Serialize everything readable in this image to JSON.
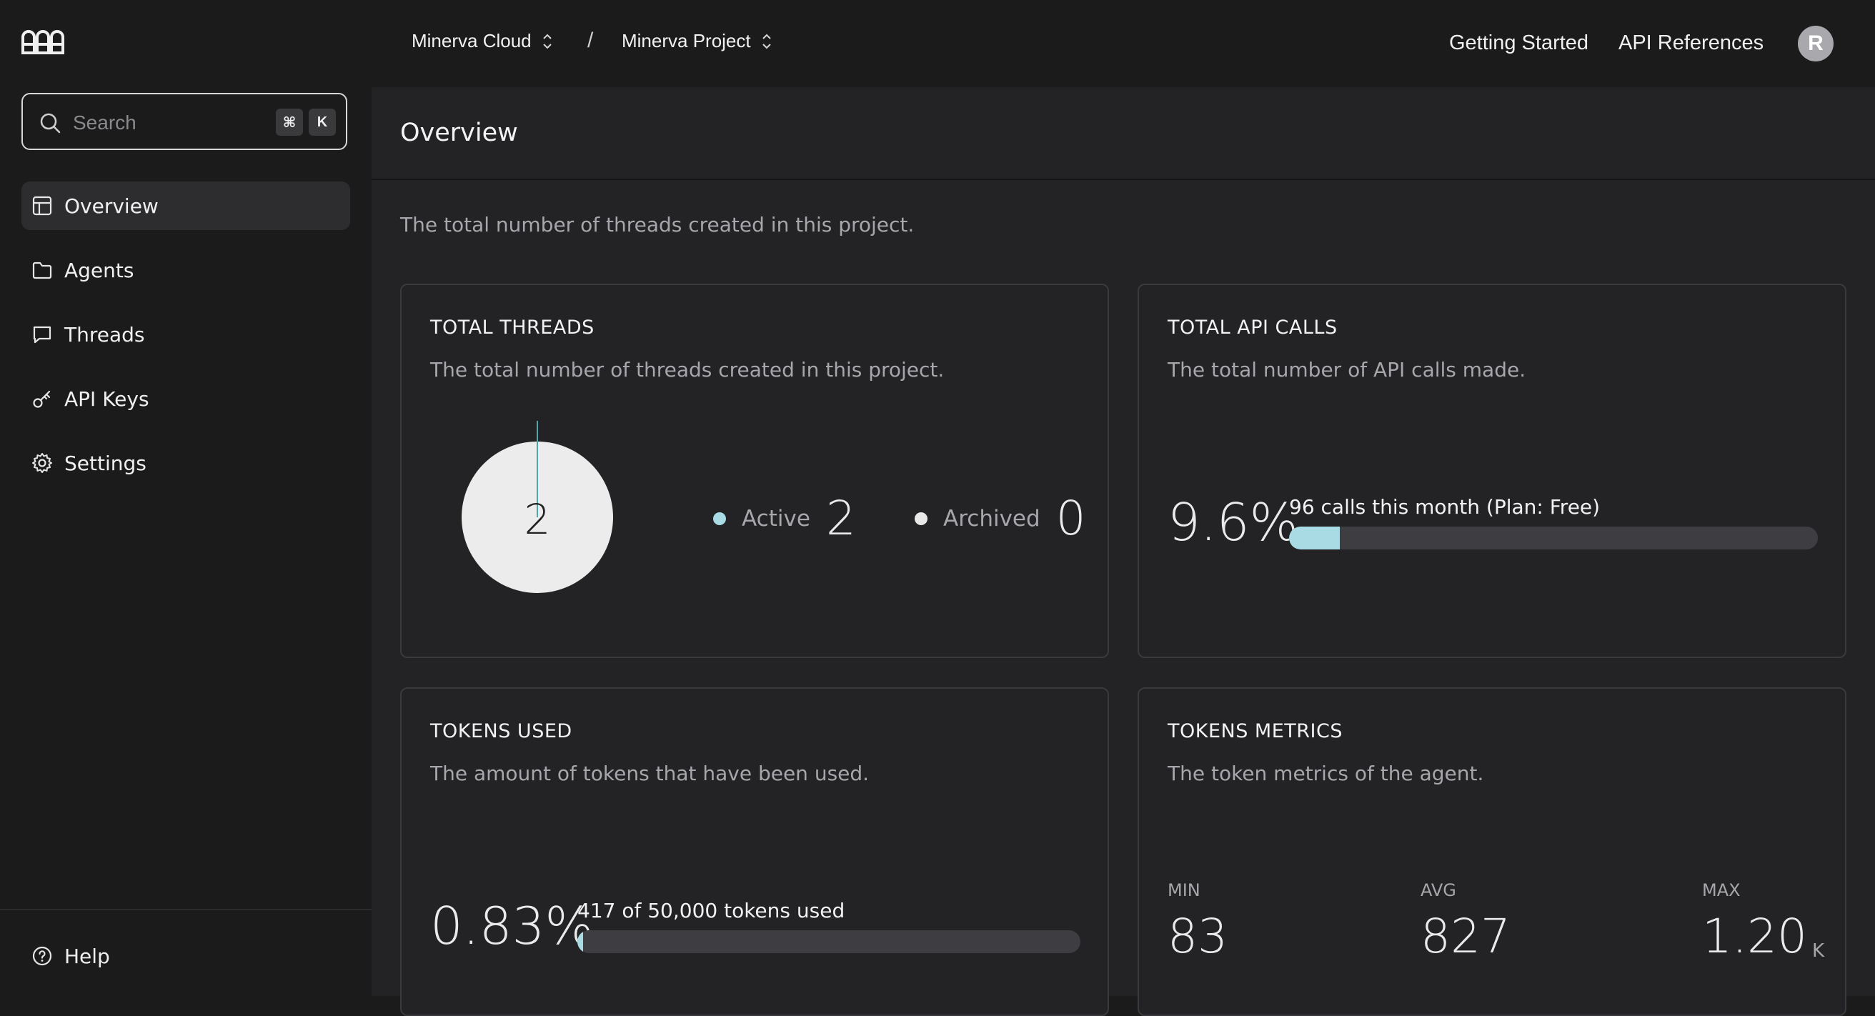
{
  "header": {
    "org": "Minerva Cloud",
    "separator": "/",
    "project": "Minerva Project",
    "links": [
      "Getting Started",
      "API References"
    ],
    "avatar_initial": "R"
  },
  "sidebar": {
    "search": {
      "placeholder": "Search",
      "shortcut": [
        "⌘",
        "K"
      ]
    },
    "items": [
      {
        "label": "Overview",
        "icon": "layout-icon",
        "active": true
      },
      {
        "label": "Agents",
        "icon": "folder-icon",
        "active": false
      },
      {
        "label": "Threads",
        "icon": "message-icon",
        "active": false
      },
      {
        "label": "API Keys",
        "icon": "key-icon",
        "active": false
      },
      {
        "label": "Settings",
        "icon": "gear-icon",
        "active": false
      }
    ],
    "help": {
      "label": "Help",
      "icon": "help-circle-icon"
    }
  },
  "main": {
    "title": "Overview",
    "description": "The total number of threads created in this project.",
    "cards": {
      "threads": {
        "title": "TOTAL THREADS",
        "description": "The total number of threads created in this project.",
        "pie_center": "2",
        "legend": [
          {
            "name": "Active",
            "value": "2",
            "color": "#a8dbe3"
          },
          {
            "name": "Archived",
            "value": "0",
            "color": "#e8e8e8"
          }
        ]
      },
      "api_calls": {
        "title": "TOTAL API CALLS",
        "description": "The total number of API calls made.",
        "percent": "9.6%",
        "bar_label": "96 calls this month (Plan: Free)",
        "fraction": 0.096
      },
      "tokens_used": {
        "title": "TOKENS USED",
        "description": "The amount of tokens that have been used.",
        "percent": "0.83%",
        "bar_label": "417 of 50,000 tokens used",
        "fraction": 0.0083
      },
      "token_metrics": {
        "title": "TOKENS METRICS",
        "description": "The token metrics of the agent.",
        "metrics": [
          {
            "label": "MIN",
            "value": "83",
            "unit": ""
          },
          {
            "label": "AVG",
            "value": "827",
            "unit": ""
          },
          {
            "label": "MAX",
            "value": "1.20",
            "unit": "K"
          }
        ]
      }
    }
  },
  "colors": {
    "accent": "#a8dbe3",
    "background": "#1b1b1c",
    "panel": "#232326",
    "border": "#3a3a3e"
  }
}
